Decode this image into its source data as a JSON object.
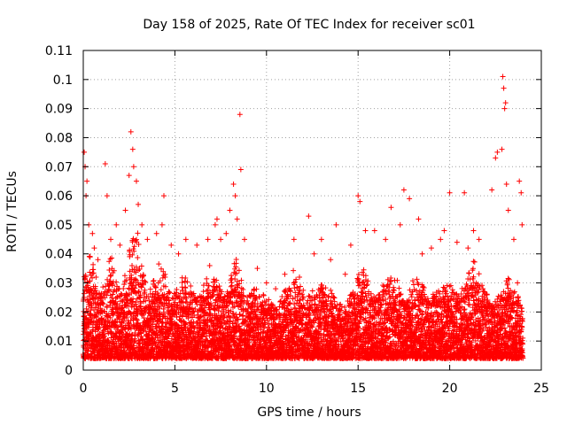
{
  "chart_data": {
    "type": "scatter",
    "title": "Day 158 of 2025, Rate Of TEC Index for receiver sc01",
    "xlabel": "GPS time / hours",
    "ylabel": "ROTI / TECUs",
    "xlim": [
      0,
      25
    ],
    "ylim": [
      0,
      0.11
    ],
    "xticks": [
      0,
      5,
      10,
      15,
      20,
      25
    ],
    "xtick_labels": [
      "0",
      "5",
      "10",
      "15",
      "20",
      "25"
    ],
    "yticks": [
      0,
      0.01,
      0.02,
      0.03,
      0.04,
      0.05,
      0.06,
      0.07,
      0.08,
      0.09,
      0.1,
      0.11
    ],
    "ytick_labels": [
      "0",
      "0.01",
      "0.02",
      "0.03",
      "0.04",
      "0.05",
      "0.06",
      "0.07",
      "0.08",
      "0.09",
      "0.1",
      "0.11"
    ],
    "grid": true,
    "marker": "plus",
    "series_color": "#ff0000",
    "series": [
      {
        "name": "ROTI",
        "points": [
          [
            0.05,
            0.075
          ],
          [
            0.1,
            0.07
          ],
          [
            0.15,
            0.06
          ],
          [
            0.2,
            0.065
          ],
          [
            0.3,
            0.05
          ],
          [
            0.5,
            0.047
          ],
          [
            0.6,
            0.042
          ],
          [
            0.8,
            0.038
          ],
          [
            1.2,
            0.071
          ],
          [
            1.3,
            0.06
          ],
          [
            1.5,
            0.045
          ],
          [
            1.8,
            0.05
          ],
          [
            2.0,
            0.043
          ],
          [
            2.3,
            0.055
          ],
          [
            2.5,
            0.067
          ],
          [
            2.6,
            0.082
          ],
          [
            2.7,
            0.076
          ],
          [
            2.75,
            0.07
          ],
          [
            2.9,
            0.065
          ],
          [
            3.0,
            0.057
          ],
          [
            3.2,
            0.05
          ],
          [
            3.5,
            0.045
          ],
          [
            4.0,
            0.047
          ],
          [
            4.3,
            0.05
          ],
          [
            4.4,
            0.06
          ],
          [
            4.8,
            0.043
          ],
          [
            5.2,
            0.04
          ],
          [
            5.6,
            0.045
          ],
          [
            6.2,
            0.043
          ],
          [
            6.8,
            0.045
          ],
          [
            7.2,
            0.05
          ],
          [
            7.3,
            0.052
          ],
          [
            7.5,
            0.045
          ],
          [
            7.8,
            0.047
          ],
          [
            8.0,
            0.055
          ],
          [
            8.2,
            0.064
          ],
          [
            8.3,
            0.06
          ],
          [
            8.4,
            0.052
          ],
          [
            8.55,
            0.088
          ],
          [
            8.6,
            0.069
          ],
          [
            8.8,
            0.045
          ],
          [
            9.5,
            0.035
          ],
          [
            10.0,
            0.03
          ],
          [
            10.5,
            0.028
          ],
          [
            11.0,
            0.033
          ],
          [
            11.5,
            0.045
          ],
          [
            11.8,
            0.032
          ],
          [
            12.3,
            0.053
          ],
          [
            12.6,
            0.04
          ],
          [
            13.0,
            0.045
          ],
          [
            13.5,
            0.038
          ],
          [
            13.8,
            0.05
          ],
          [
            14.3,
            0.033
          ],
          [
            14.6,
            0.043
          ],
          [
            15.0,
            0.06
          ],
          [
            15.1,
            0.058
          ],
          [
            15.4,
            0.048
          ],
          [
            15.9,
            0.048
          ],
          [
            16.5,
            0.045
          ],
          [
            16.8,
            0.056
          ],
          [
            17.3,
            0.05
          ],
          [
            17.5,
            0.062
          ],
          [
            17.8,
            0.059
          ],
          [
            18.3,
            0.052
          ],
          [
            18.5,
            0.04
          ],
          [
            19.0,
            0.042
          ],
          [
            19.5,
            0.045
          ],
          [
            19.7,
            0.048
          ],
          [
            20.0,
            0.061
          ],
          [
            20.4,
            0.044
          ],
          [
            20.8,
            0.061
          ],
          [
            21.0,
            0.042
          ],
          [
            21.3,
            0.048
          ],
          [
            21.6,
            0.045
          ],
          [
            22.3,
            0.062
          ],
          [
            22.5,
            0.073
          ],
          [
            22.6,
            0.075
          ],
          [
            22.9,
            0.101
          ],
          [
            22.95,
            0.097
          ],
          [
            23.0,
            0.09
          ],
          [
            23.05,
            0.092
          ],
          [
            23.1,
            0.064
          ],
          [
            22.85,
            0.076
          ],
          [
            23.2,
            0.055
          ],
          [
            23.5,
            0.045
          ],
          [
            23.7,
            0.03
          ],
          [
            23.8,
            0.065
          ],
          [
            23.9,
            0.061
          ],
          [
            23.95,
            0.05
          ]
        ]
      }
    ],
    "background_band": {
      "description": "dense cloud of points over full day",
      "x_range": [
        0,
        24
      ],
      "base_low": 0.004,
      "base_high": 0.022,
      "bursts": [
        {
          "center": 0.4,
          "width": 0.7,
          "top": 0.045
        },
        {
          "center": 1.5,
          "width": 0.8,
          "top": 0.042
        },
        {
          "center": 2.8,
          "width": 0.9,
          "top": 0.055
        },
        {
          "center": 4.2,
          "width": 0.8,
          "top": 0.04
        },
        {
          "center": 5.5,
          "width": 1.0,
          "top": 0.035
        },
        {
          "center": 7.0,
          "width": 1.0,
          "top": 0.038
        },
        {
          "center": 8.3,
          "width": 0.6,
          "top": 0.045
        },
        {
          "center": 9.3,
          "width": 1.2,
          "top": 0.03
        },
        {
          "center": 11.5,
          "width": 1.0,
          "top": 0.035
        },
        {
          "center": 13.0,
          "width": 1.2,
          "top": 0.033
        },
        {
          "center": 15.2,
          "width": 1.0,
          "top": 0.038
        },
        {
          "center": 16.8,
          "width": 1.2,
          "top": 0.036
        },
        {
          "center": 18.2,
          "width": 1.0,
          "top": 0.035
        },
        {
          "center": 19.8,
          "width": 1.2,
          "top": 0.033
        },
        {
          "center": 21.3,
          "width": 1.0,
          "top": 0.04
        },
        {
          "center": 23.2,
          "width": 0.9,
          "top": 0.033
        }
      ]
    }
  }
}
